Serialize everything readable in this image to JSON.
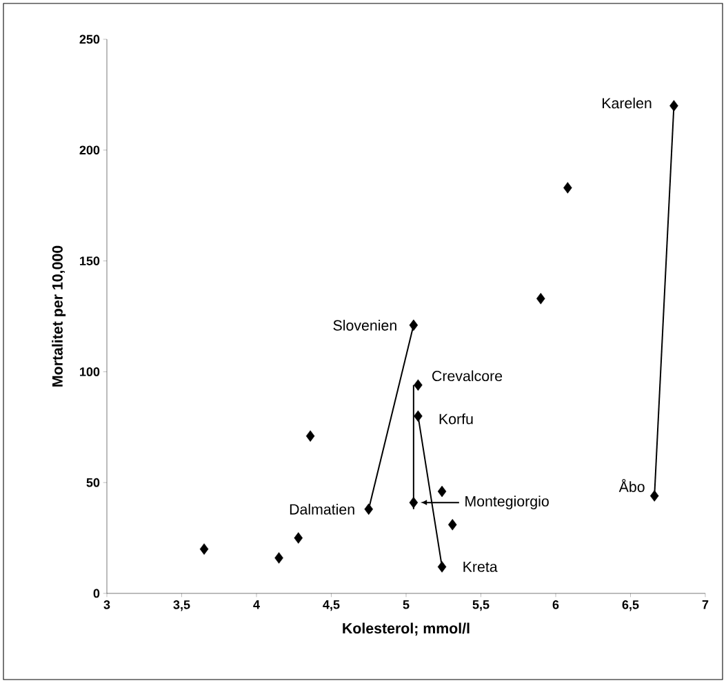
{
  "chart_data": {
    "type": "scatter",
    "xlabel": "Kolesterol; mmol/l",
    "ylabel": "Mortalitet per 10,000",
    "xlim": [
      3,
      7
    ],
    "ylim": [
      0,
      250
    ],
    "xticks": [
      3,
      {
        "value": 3.5,
        "label": "3,5"
      },
      4,
      {
        "value": 4.5,
        "label": "4,5"
      },
      5,
      {
        "value": 5.5,
        "label": "5,5"
      },
      6,
      {
        "value": 6.5,
        "label": "6,5"
      },
      7
    ],
    "yticks": [
      0,
      50,
      100,
      150,
      200,
      250
    ],
    "marker": "diamond",
    "grid": false,
    "series": [
      {
        "type": "line",
        "color": "#000000",
        "marker": "none",
        "x": [
          6.79,
          6.66
        ],
        "values": [
          220,
          44
        ]
      },
      {
        "type": "line",
        "color": "#000000",
        "marker": "none",
        "x": [
          5.05,
          4.75
        ],
        "values": [
          121,
          38
        ]
      },
      {
        "type": "line",
        "color": "#000000",
        "marker": "none",
        "x": [
          5.05,
          5.05
        ],
        "values": [
          94,
          38
        ]
      },
      {
        "type": "line",
        "color": "#000000",
        "marker": "none",
        "x": [
          5.08,
          5.24
        ],
        "values": [
          80,
          12
        ]
      },
      {
        "color": "#000000",
        "x": [
          3.65,
          4.15,
          4.28,
          4.36,
          4.75,
          5.05,
          5.05,
          5.08,
          5.08,
          5.24,
          5.24,
          5.31,
          5.9,
          6.08,
          6.66,
          6.79
        ],
        "values": [
          20,
          16,
          25,
          71,
          38,
          121,
          41,
          94,
          80,
          46,
          12,
          31,
          133,
          183,
          44,
          220
        ]
      }
    ],
    "annotations": [
      {
        "text": "Karelen",
        "x": 6.79,
        "y": 220
      },
      {
        "text": "Slovenien",
        "x": 5.05,
        "y": 121
      },
      {
        "text": "Crevalcore",
        "x": 5.08,
        "y": 94
      },
      {
        "text": "Korfu",
        "x": 5.08,
        "y": 80
      },
      {
        "text": "Dalmatien",
        "x": 4.75,
        "y": 38
      },
      "Montegiorgio",
      {
        "text": "Kreta",
        "x": 5.24,
        "y": 12
      },
      {
        "text": "Åbo",
        "x": 6.66,
        "y": 44
      }
    ]
  }
}
